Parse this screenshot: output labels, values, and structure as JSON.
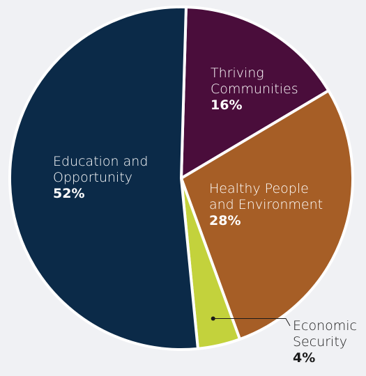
{
  "chart_data": {
    "type": "pie",
    "title": "",
    "slices": [
      {
        "label_lines": [
          "Thriving",
          "Communities"
        ],
        "value": 16,
        "pct_label": "16%",
        "color": "#4a0d3b"
      },
      {
        "label_lines": [
          "Healthy People",
          "and Environment"
        ],
        "value": 28,
        "pct_label": "28%",
        "color": "#a65e26"
      },
      {
        "label_lines": [
          "Economic",
          "Security"
        ],
        "value": 4,
        "pct_label": "4%",
        "color": "#c3d23c"
      },
      {
        "label_lines": [
          "Education and",
          "Opportunity"
        ],
        "value": 52,
        "pct_label": "52%",
        "color": "#0b2a48"
      }
    ]
  }
}
